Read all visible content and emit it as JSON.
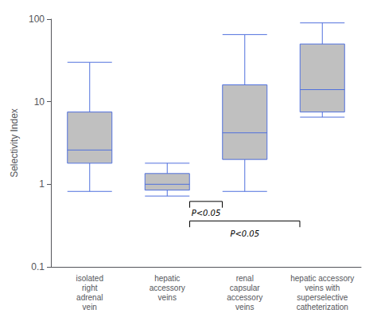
{
  "chart_data": {
    "type": "box",
    "categories": [
      "isolated\nright\nadrenal\nvein",
      "hepatic\naccessory\nveins",
      "renal\ncapsular\naccessory\nveins",
      "hepatic accessory\nveins with\nsuperselective\ncatheterization"
    ],
    "values": [
      {
        "whisker_low": 0.82,
        "q1": 1.8,
        "median": 2.6,
        "q3": 7.5,
        "whisker_high": 30
      },
      {
        "whisker_low": 0.72,
        "q1": 0.85,
        "median": 1.0,
        "q3": 1.35,
        "whisker_high": 1.8
      },
      {
        "whisker_low": 0.82,
        "q1": 2.0,
        "median": 4.2,
        "q3": 16.0,
        "whisker_high": 65
      },
      {
        "whisker_low": 6.5,
        "q1": 7.5,
        "median": 14.0,
        "q3": 50.0,
        "whisker_high": 90
      }
    ],
    "color": "#c0c0c0",
    "ylabel": "Selectivity Index",
    "log": "y",
    "ylim": [
      0.1,
      100
    ],
    "yticks": [
      0.1,
      1,
      10,
      100
    ],
    "grid": false,
    "annotations": [
      {
        "text": "P<0.05",
        "from": "hepatic\naccessory\nveins",
        "to": "renal\ncapsular\naccessory\nveins",
        "y_bracket": 0.62,
        "y_label": 0.5
      },
      {
        "text": "P<0.05",
        "from": "hepatic\naccessory\nveins",
        "to": "hepatic accessory\nveins with\nsuperselective\ncatheterization",
        "y_bracket": 0.36,
        "y_label": 0.28
      }
    ]
  }
}
